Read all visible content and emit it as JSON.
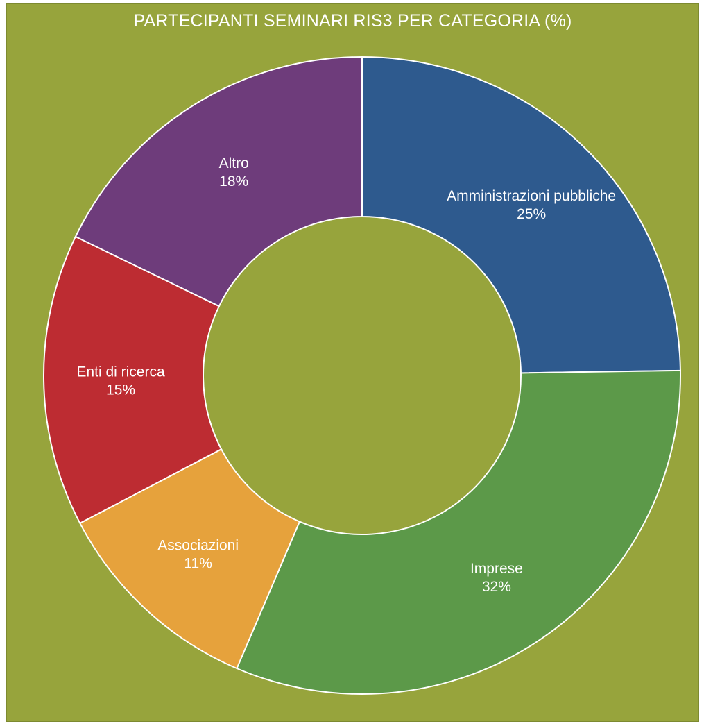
{
  "chart_data": {
    "type": "pie",
    "variant": "donut",
    "title": "PARTECIPANTI SEMINARI RIS3 PER CATEGORIA (%)",
    "unit": "%",
    "background_color": "#97a43c",
    "categories": [
      "Amministrazioni pubbliche",
      "Imprese",
      "Associazioni",
      "Enti di ricerca",
      "Altro"
    ],
    "values": [
      25,
      32,
      11,
      15,
      18
    ],
    "value_labels": [
      "25%",
      "32%",
      "11%",
      "15%",
      "18%"
    ],
    "colors": [
      "#2e5a8e",
      "#5c9949",
      "#e6a23c",
      "#bd2c32",
      "#6e3c7b"
    ],
    "start_angle_deg": 0,
    "direction": "clockwise",
    "legend": "none",
    "labels_placement": "inside-slices"
  }
}
